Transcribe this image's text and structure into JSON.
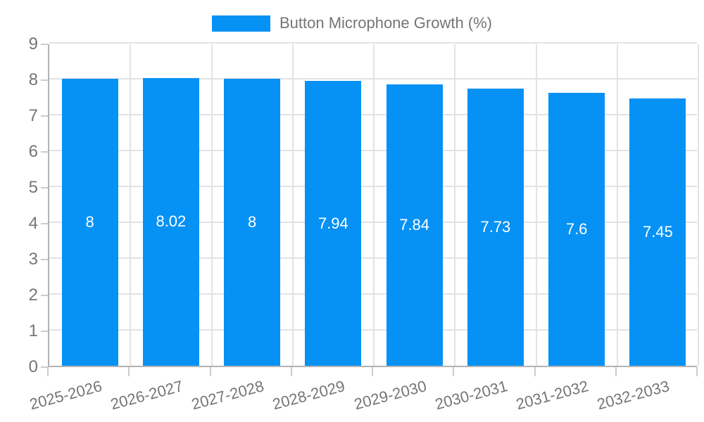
{
  "chart_data": {
    "type": "bar",
    "title": "Button Microphone Growth (%)",
    "categories": [
      "2025-2026",
      "2026-2027",
      "2027-2028",
      "2028-2029",
      "2029-2030",
      "2030-2031",
      "2031-2032",
      "2032-2033"
    ],
    "values": [
      8,
      8.02,
      8,
      7.94,
      7.84,
      7.73,
      7.6,
      7.45
    ],
    "value_labels": [
      "8",
      "8.02",
      "8",
      "7.94",
      "7.84",
      "7.73",
      "7.6",
      "7.45"
    ],
    "xlabel": "",
    "ylabel": "",
    "ylim": [
      0,
      9
    ],
    "yticks": [
      0,
      1,
      2,
      3,
      4,
      5,
      6,
      7,
      8,
      9
    ],
    "grid": true,
    "legend_position": "top",
    "bar_color": "#0691f5",
    "bar_label_color": "#ffffff",
    "axis_text_color": "#757575",
    "gridline_color": "#e3e3e3",
    "tick_color": "#cccccc",
    "axis_line_color": "#b3b3b3"
  }
}
